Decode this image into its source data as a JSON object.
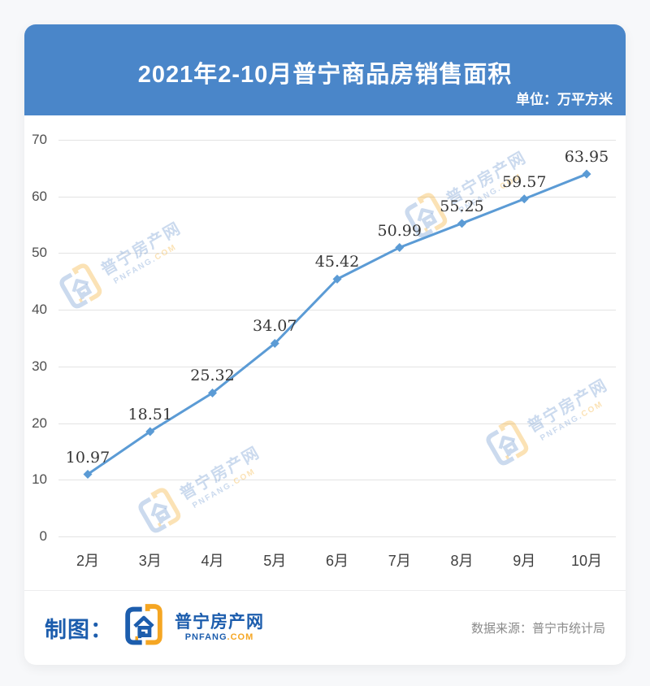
{
  "header": {
    "title": "2021年2-10月普宁商品房销售面积",
    "unit_label": "单位：万平方米",
    "bg_color": "#4a86c9",
    "text_color": "#ffffff"
  },
  "chart_data": {
    "type": "line",
    "title": "2021年2-10月普宁商品房销售面积",
    "unit": "万平方米",
    "categories": [
      "2月",
      "3月",
      "4月",
      "5月",
      "6月",
      "7月",
      "8月",
      "9月",
      "10月"
    ],
    "values": [
      10.97,
      18.51,
      25.32,
      34.07,
      45.42,
      50.99,
      55.25,
      59.57,
      63.95
    ],
    "ylim": [
      0,
      70
    ],
    "yticks": [
      0,
      10,
      20,
      30,
      40,
      50,
      60,
      70
    ],
    "grid": true,
    "legend": "none",
    "data_labels": true,
    "line_color": "#5b9bd5",
    "marker": "diamond",
    "label_color": "#373737"
  },
  "watermark": {
    "brand_cn": "普宁房产网",
    "brand_en": "PNFANG.COM",
    "blue": "rgba(96,144,203,0.33)",
    "yellow": "rgba(244,178,60,0.38)"
  },
  "footer": {
    "made_by_label": "制图：",
    "brand_cn": "普宁房产网",
    "brand_en_blue": "PNFANG",
    "brand_en_orange": ".COM",
    "source": "数据来源：普宁市统计局",
    "brand_blue": "#1c5dad",
    "brand_orange": "#f5a623"
  }
}
